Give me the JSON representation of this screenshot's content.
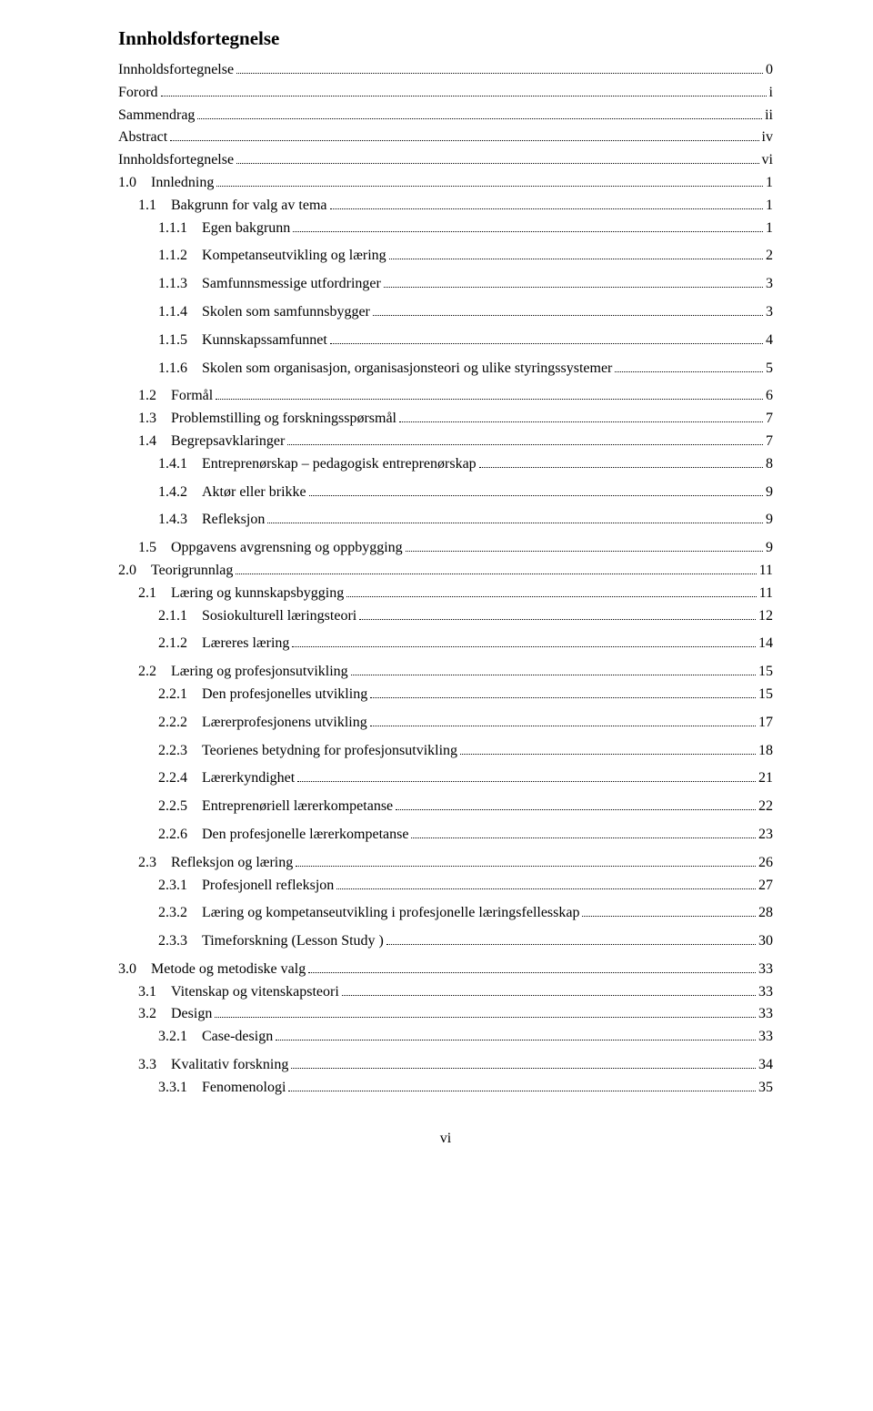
{
  "title": "Innholdsfortegnelse",
  "footer": "vi",
  "entries": [
    {
      "label": "Innholdsfortegnelse",
      "page": "0",
      "indent": 0,
      "gap": false
    },
    {
      "label": "Forord",
      "page": "i",
      "indent": 0,
      "gap": false
    },
    {
      "label": "Sammendrag",
      "page": "ii",
      "indent": 0,
      "gap": false
    },
    {
      "label": "Abstract",
      "page": "iv",
      "indent": 0,
      "gap": false
    },
    {
      "label": "Innholdsfortegnelse",
      "page": "vi",
      "indent": 0,
      "gap": false
    },
    {
      "label": "1.0 Innledning",
      "page": "1",
      "indent": 0,
      "gap": false
    },
    {
      "label": "1.1 Bakgrunn for valg av tema",
      "page": "1",
      "indent": 1,
      "gap": false
    },
    {
      "label": "1.1.1 Egen bakgrunn",
      "page": "1",
      "indent": 2,
      "gap": false
    },
    {
      "label": "1.1.2 Kompetanseutvikling og læring",
      "page": "2",
      "indent": 2,
      "gap": true
    },
    {
      "label": "1.1.3 Samfunnsmessige utfordringer",
      "page": "3",
      "indent": 2,
      "gap": true
    },
    {
      "label": "1.1.4 Skolen som samfunnsbygger",
      "page": "3",
      "indent": 2,
      "gap": true
    },
    {
      "label": "1.1.5 Kunnskapssamfunnet",
      "page": "4",
      "indent": 2,
      "gap": true
    },
    {
      "label": "1.1.6 Skolen som organisasjon, organisasjonsteori og ulike styringssystemer",
      "page": "5",
      "indent": 2,
      "gap": true
    },
    {
      "label": "1.2 Formål",
      "page": "6",
      "indent": 1,
      "gap": true
    },
    {
      "label": "1.3 Problemstilling og forskningsspørsmål",
      "page": "7",
      "indent": 1,
      "gap": false
    },
    {
      "label": "1.4 Begrepsavklaringer",
      "page": "7",
      "indent": 1,
      "gap": false
    },
    {
      "label": "1.4.1 Entreprenørskap – pedagogisk entreprenørskap",
      "page": "8",
      "indent": 2,
      "gap": false
    },
    {
      "label": "1.4.2 Aktør eller brikke",
      "page": "9",
      "indent": 2,
      "gap": true
    },
    {
      "label": "1.4.3 Refleksjon",
      "page": "9",
      "indent": 2,
      "gap": true
    },
    {
      "label": "1.5 Oppgavens avgrensning og oppbygging",
      "page": "9",
      "indent": 1,
      "gap": true
    },
    {
      "label": "2.0 Teorigrunnlag",
      "page": "11",
      "indent": 0,
      "gap": false
    },
    {
      "label": "2.1 Læring og kunnskapsbygging",
      "page": "11",
      "indent": 1,
      "gap": false
    },
    {
      "label": "2.1.1 Sosiokulturell læringsteori",
      "page": "12",
      "indent": 2,
      "gap": false
    },
    {
      "label": "2.1.2 Læreres læring",
      "page": "14",
      "indent": 2,
      "gap": true
    },
    {
      "label": "2.2 Læring og profesjonsutvikling",
      "page": "15",
      "indent": 1,
      "gap": true
    },
    {
      "label": "2.2.1 Den profesjonelles utvikling",
      "page": "15",
      "indent": 2,
      "gap": false
    },
    {
      "label": "2.2.2 Lærerprofesjonens utvikling",
      "page": "17",
      "indent": 2,
      "gap": true
    },
    {
      "label": "2.2.3 Teorienes betydning for profesjonsutvikling",
      "page": "18",
      "indent": 2,
      "gap": true
    },
    {
      "label": "2.2.4 Lærerkyndighet",
      "page": "21",
      "indent": 2,
      "gap": true
    },
    {
      "label": "2.2.5 Entreprenøriell lærerkompetanse",
      "page": "22",
      "indent": 2,
      "gap": true
    },
    {
      "label": "2.2.6 Den profesjonelle lærerkompetanse",
      "page": "23",
      "indent": 2,
      "gap": true
    },
    {
      "label": "2.3 Refleksjon og læring",
      "page": "26",
      "indent": 1,
      "gap": true
    },
    {
      "label": "2.3.1 Profesjonell refleksjon",
      "page": "27",
      "indent": 2,
      "gap": false
    },
    {
      "label": "2.3.2 Læring og kompetanseutvikling i profesjonelle læringsfellesskap",
      "page": "28",
      "indent": 2,
      "gap": true
    },
    {
      "label": "2.3.3 Timeforskning (Lesson Study )",
      "page": "30",
      "indent": 2,
      "gap": true
    },
    {
      "label": "3.0 Metode og metodiske valg",
      "page": "33",
      "indent": 0,
      "gap": true
    },
    {
      "label": "3.1 Vitenskap og vitenskapsteori",
      "page": "33",
      "indent": 1,
      "gap": false
    },
    {
      "label": "3.2 Design",
      "page": "33",
      "indent": 1,
      "gap": false
    },
    {
      "label": "3.2.1 Case-design",
      "page": "33",
      "indent": 2,
      "gap": false
    },
    {
      "label": "3.3 Kvalitativ forskning",
      "page": "34",
      "indent": 1,
      "gap": true
    },
    {
      "label": "3.3.1 Fenomenologi",
      "page": "35",
      "indent": 2,
      "gap": false
    }
  ]
}
